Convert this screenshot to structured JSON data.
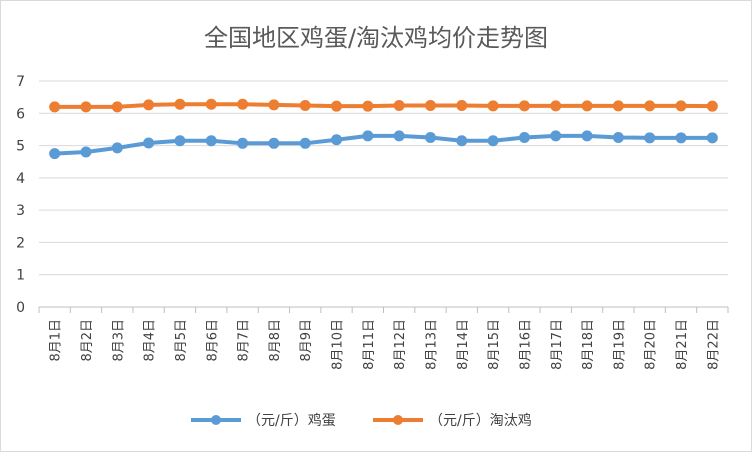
{
  "chart_data": {
    "type": "line",
    "title": "全国地区鸡蛋/淘汰鸡均价走势图",
    "categories": [
      "8月1日",
      "8月2日",
      "8月3日",
      "8月4日",
      "8月5日",
      "8月6日",
      "8月7日",
      "8月8日",
      "8月9日",
      "8月10日",
      "8月11日",
      "8月12日",
      "8月13日",
      "8月14日",
      "8月15日",
      "8月16日",
      "8月17日",
      "8月18日",
      "8月19日",
      "8月20日",
      "8月21日",
      "8月22日"
    ],
    "ylim": [
      0,
      7
    ],
    "yticks": [
      "0",
      "1",
      "2",
      "3",
      "4",
      "5",
      "6",
      "7"
    ],
    "grid": true,
    "legend_position": "bottom",
    "series": [
      {
        "name": "（元/斤）鸡蛋",
        "color": "#5B9BD5",
        "values": [
          4.75,
          4.8,
          4.93,
          5.08,
          5.15,
          5.15,
          5.07,
          5.07,
          5.07,
          5.18,
          5.3,
          5.3,
          5.25,
          5.15,
          5.15,
          5.25,
          5.3,
          5.3,
          5.25,
          5.24,
          5.24,
          5.24
        ]
      },
      {
        "name": "（元/斤）淘汰鸡",
        "color": "#ED7D31",
        "values": [
          6.2,
          6.2,
          6.2,
          6.26,
          6.28,
          6.28,
          6.28,
          6.26,
          6.24,
          6.22,
          6.22,
          6.24,
          6.24,
          6.24,
          6.23,
          6.23,
          6.23,
          6.23,
          6.23,
          6.23,
          6.23,
          6.22
        ]
      }
    ]
  }
}
